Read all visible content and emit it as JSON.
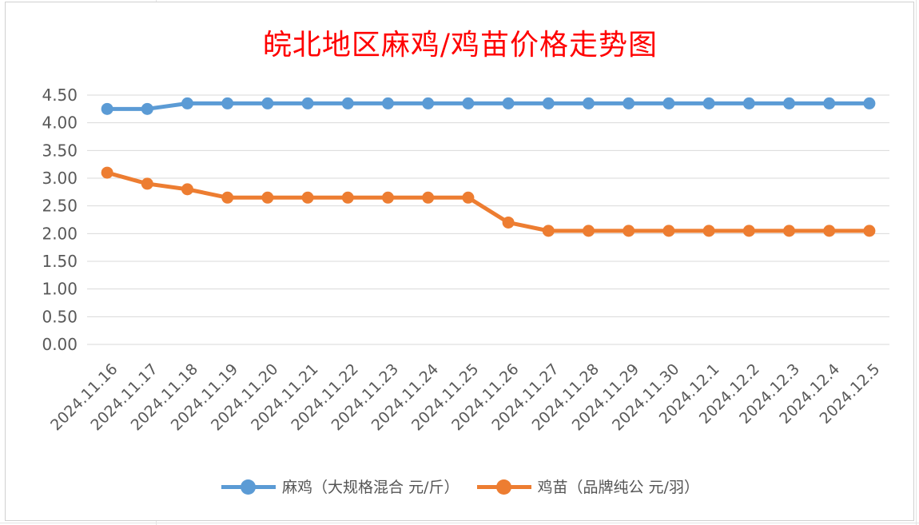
{
  "chart_data": {
    "type": "line",
    "title": "皖北地区麻鸡/鸡苗价格走势图",
    "xlabel": "",
    "ylabel": "",
    "ylim": [
      0,
      4.5
    ],
    "yticks": [
      "0.00",
      "0.50",
      "1.00",
      "1.50",
      "2.00",
      "2.50",
      "3.00",
      "3.50",
      "4.00",
      "4.50"
    ],
    "grid": true,
    "legend_position": "bottom",
    "categories": [
      "2024.11.16",
      "2024.11.17",
      "2024.11.18",
      "2024.11.19",
      "2024.11.20",
      "2024.11.21",
      "2024.11.22",
      "2024.11.23",
      "2024.11.24",
      "2024.11.25",
      "2024.11.26",
      "2024.11.27",
      "2024.11.28",
      "2024.11.29",
      "2024.11.30",
      "2024.12.1",
      "2024.12.2",
      "2024.12.3",
      "2024.12.4",
      "2024.12.5"
    ],
    "series": [
      {
        "name": "麻鸡（大规格混合 元/斤）",
        "color": "#5b9bd5",
        "values": [
          4.25,
          4.25,
          4.35,
          4.35,
          4.35,
          4.35,
          4.35,
          4.35,
          4.35,
          4.35,
          4.35,
          4.35,
          4.35,
          4.35,
          4.35,
          4.35,
          4.35,
          4.35,
          4.35,
          4.35
        ]
      },
      {
        "name": "鸡苗（品牌纯公 元/羽）",
        "color": "#ed7d31",
        "values": [
          3.1,
          2.9,
          2.8,
          2.65,
          2.65,
          2.65,
          2.65,
          2.65,
          2.65,
          2.65,
          2.2,
          2.05,
          2.05,
          2.05,
          2.05,
          2.05,
          2.05,
          2.05,
          2.05,
          2.05
        ]
      }
    ]
  }
}
